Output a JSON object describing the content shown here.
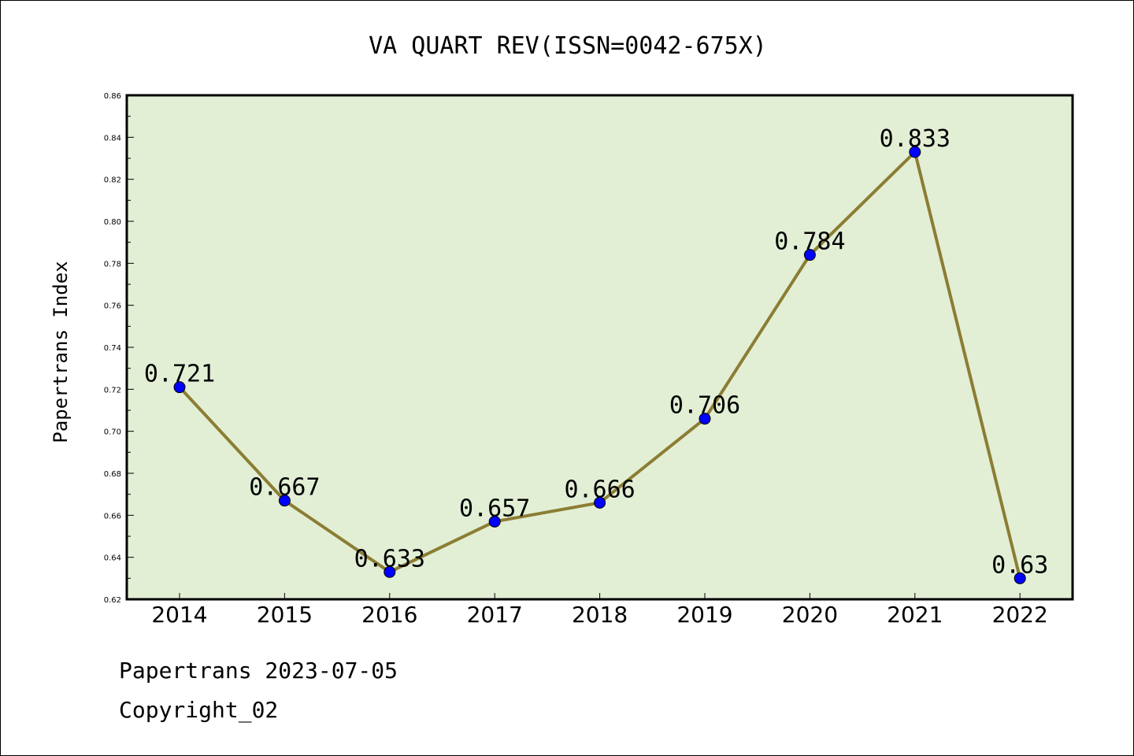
{
  "chart_data": {
    "type": "line",
    "title": "VA QUART REV(ISSN=0042-675X)",
    "xlabel": "",
    "ylabel": "Papertrans Index",
    "categories": [
      "2014",
      "2015",
      "2016",
      "2017",
      "2018",
      "2019",
      "2020",
      "2021",
      "2022"
    ],
    "series": [
      {
        "values": [
          0.721,
          0.667,
          0.633,
          0.657,
          0.666,
          0.706,
          0.784,
          0.833,
          0.63
        ],
        "data_labels": [
          "0.721",
          "0.667",
          "0.633",
          "0.657",
          "0.666",
          "0.706",
          "0.784",
          "0.833",
          "0.63"
        ]
      }
    ],
    "ylim": [
      0.62,
      0.86
    ],
    "yticks": [
      "0.62",
      "0.64",
      "0.66",
      "0.68",
      "0.70",
      "0.72",
      "0.74",
      "0.76",
      "0.78",
      "0.80",
      "0.82",
      "0.84",
      "0.86"
    ],
    "grid": false,
    "legend": "none"
  },
  "footer": {
    "date_line": "Papertrans 2023-07-05",
    "copyright": "Copyright_02"
  },
  "colors": {
    "plot_background": "#e2efd5",
    "line": "#8b7d33",
    "marker": "#0000ff",
    "axis": "#000000"
  }
}
